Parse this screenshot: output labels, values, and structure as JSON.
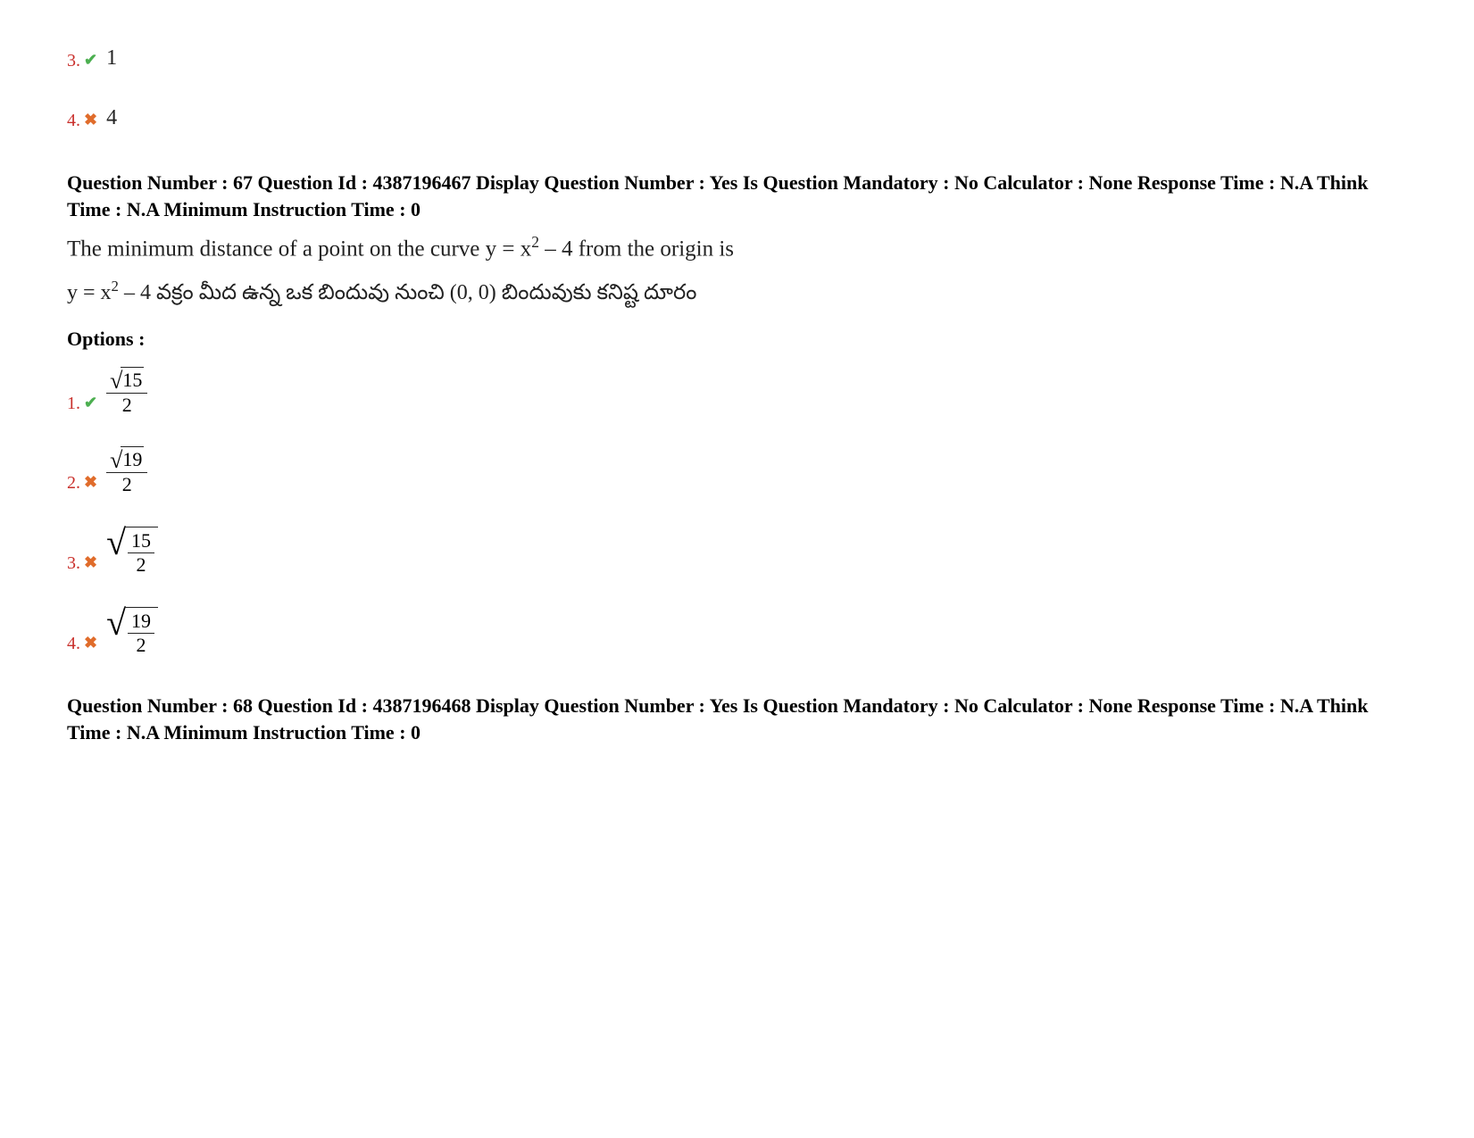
{
  "prev_options": [
    {
      "num": "3.",
      "correct": true,
      "value": "1"
    },
    {
      "num": "4.",
      "correct": false,
      "value": "4"
    }
  ],
  "q67": {
    "meta_parts": {
      "qn_label": "Question Number : ",
      "qn_val": "67",
      "qid_label": " Question Id : ",
      "qid_val": "4387196467",
      "disp_label": " Display Question Number : ",
      "disp_val": "Yes",
      "mand_label": " Is Question Mandatory : ",
      "mand_val": "No",
      "calc_label": " Calculator : ",
      "calc_val": "None",
      "resp_label": " Response Time : ",
      "resp_val": "N.A",
      "think_label": " Think Time : ",
      "think_val": "N.A",
      "min_label": " Minimum Instruction Time : ",
      "min_val": "0"
    },
    "text_en_pre": "The minimum distance of a point on the curve y = x",
    "text_en_sup": "2",
    "text_en_post": " – 4 from the origin is",
    "text_te_pre": "y = x",
    "text_te_sup": "2",
    "text_te_post": " – 4 వక్రం మీద ఉన్న ఒక బిందువు నుంచి  (0, 0) బిందువుకు కనిష్ట దూరం",
    "options_label": "Options :",
    "options": [
      {
        "num": "1.",
        "correct": true,
        "type": "frac_sqrt_over",
        "sqrt_of": "15",
        "den": "2"
      },
      {
        "num": "2.",
        "correct": false,
        "type": "frac_sqrt_over",
        "sqrt_of": "19",
        "den": "2"
      },
      {
        "num": "3.",
        "correct": false,
        "type": "sqrt_frac",
        "num_inner": "15",
        "den_inner": "2"
      },
      {
        "num": "4.",
        "correct": false,
        "type": "sqrt_frac",
        "num_inner": "19",
        "den_inner": "2"
      }
    ]
  },
  "q68": {
    "meta_parts": {
      "qn_label": "Question Number : ",
      "qn_val": "68",
      "qid_label": " Question Id : ",
      "qid_val": "4387196468",
      "disp_label": " Display Question Number : ",
      "disp_val": "Yes",
      "mand_label": " Is Question Mandatory : ",
      "mand_val": "No",
      "calc_label": " Calculator : ",
      "calc_val": "None",
      "resp_label": " Response Time : ",
      "resp_val": "N.A",
      "think_label": " Think Time : ",
      "think_val": "N.A",
      "min_label": " Minimum Instruction Time : ",
      "min_val": "0"
    }
  },
  "colors": {
    "opt_num": "#c9302c",
    "correct": "#4caf50",
    "wrong": "#e06c2b",
    "text": "#000000",
    "bg": "#ffffff"
  }
}
